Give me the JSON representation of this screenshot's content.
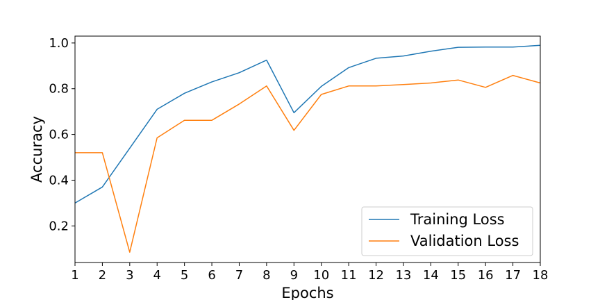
{
  "chart_data": {
    "type": "line",
    "title": "",
    "xlabel": "Epochs",
    "ylabel": "Accuracy",
    "x": [
      1,
      2,
      3,
      4,
      5,
      6,
      7,
      8,
      9,
      10,
      11,
      12,
      13,
      14,
      15,
      16,
      17,
      18
    ],
    "xticks": [
      "1",
      "2",
      "3",
      "4",
      "5",
      "6",
      "7",
      "8",
      "9",
      "10",
      "11",
      "12",
      "13",
      "14",
      "15",
      "16",
      "17",
      "18"
    ],
    "yticks": [
      "0.2",
      "0.4",
      "0.6",
      "0.8",
      "1.0"
    ],
    "ytick_values": [
      0.2,
      0.4,
      0.6,
      0.8,
      1.0
    ],
    "xlim": [
      1,
      18
    ],
    "ylim": [
      0.04,
      1.03
    ],
    "grid": false,
    "legend_position": "bottom-right",
    "series": [
      {
        "name": "Training Loss",
        "color": "#1f77b4",
        "values": [
          0.3,
          0.37,
          0.54,
          0.71,
          0.78,
          0.83,
          0.87,
          0.925,
          0.695,
          0.81,
          0.892,
          0.933,
          0.943,
          0.964,
          0.981,
          0.982,
          0.982,
          0.99
        ]
      },
      {
        "name": "Validation Loss",
        "color": "#ff7f0e",
        "values": [
          0.52,
          0.52,
          0.085,
          0.585,
          0.662,
          0.662,
          0.733,
          0.812,
          0.618,
          0.775,
          0.812,
          0.812,
          0.818,
          0.825,
          0.838,
          0.806,
          0.858,
          0.825
        ]
      }
    ]
  }
}
